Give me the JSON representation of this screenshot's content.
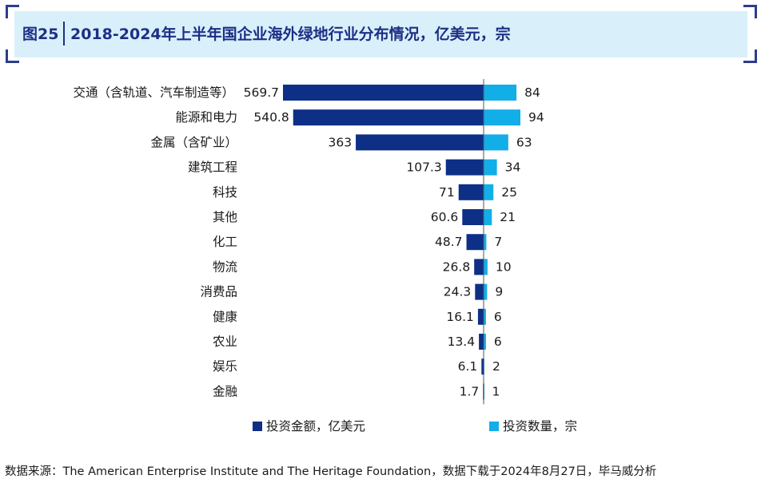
{
  "header": {
    "figure_label": "图25",
    "title": "2018-2024年上半年国企业海外绿地行业分布情况，亿美元，宗"
  },
  "chart_data": {
    "type": "bar",
    "orientation": "horizontal-diverging",
    "title": "2018-2024年上半年国企业海外绿地行业分布情况，亿美元，宗",
    "categories": [
      "交通（含轨道、汽车制造等）",
      "能源和电力",
      "金属（含矿业）",
      "建筑工程",
      "科技",
      "其他",
      "化工",
      "物流",
      "消费品",
      "健康",
      "农业",
      "娱乐",
      "金融"
    ],
    "series": [
      {
        "name": "投资金额，亿美元",
        "color": "#0d2f86",
        "direction": "left",
        "values": [
          569.7,
          540.8,
          363,
          107.3,
          71,
          60.6,
          48.7,
          26.8,
          24.3,
          16.1,
          13.4,
          6.1,
          1.7
        ],
        "labels": [
          "569.7",
          "540.8",
          "363",
          "107.3",
          "71",
          "60.6",
          "48.7",
          "26.8",
          "24.3",
          "16.1",
          "13.4",
          "6.1",
          "1.7"
        ]
      },
      {
        "name": "投资数量，宗",
        "color": "#12aee8",
        "direction": "right",
        "values": [
          84,
          94,
          63,
          34,
          25,
          21,
          7,
          10,
          9,
          6,
          6,
          2,
          1
        ],
        "labels": [
          "84",
          "94",
          "63",
          "34",
          "25",
          "21",
          "7",
          "10",
          "9",
          "6",
          "6",
          "2",
          "1"
        ]
      }
    ],
    "legend_position": "bottom-center",
    "grid": false
  },
  "source_note": "数据来源：The American Enterprise Institute and The Heritage Foundation，数据下载于2024年8月27日，毕马威分析"
}
